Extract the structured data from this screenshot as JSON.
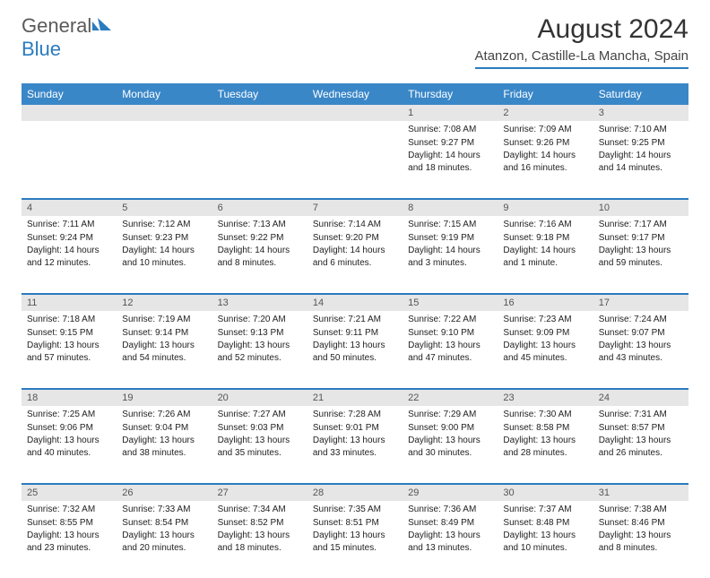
{
  "logo": {
    "text1": "General",
    "text2": "Blue"
  },
  "title": "August 2024",
  "location": "Atanzon, Castille-La Mancha, Spain",
  "colors": {
    "header_bar": "#3a87c8",
    "accent_line": "#2b7bbf",
    "daynum_bg": "#e6e6e6",
    "text": "#333333"
  },
  "daynames": [
    "Sunday",
    "Monday",
    "Tuesday",
    "Wednesday",
    "Thursday",
    "Friday",
    "Saturday"
  ],
  "weeks": [
    [
      {
        "n": "",
        "sr": "",
        "ss": "",
        "dl": ""
      },
      {
        "n": "",
        "sr": "",
        "ss": "",
        "dl": ""
      },
      {
        "n": "",
        "sr": "",
        "ss": "",
        "dl": ""
      },
      {
        "n": "",
        "sr": "",
        "ss": "",
        "dl": ""
      },
      {
        "n": "1",
        "sr": "Sunrise: 7:08 AM",
        "ss": "Sunset: 9:27 PM",
        "dl": "Daylight: 14 hours and 18 minutes."
      },
      {
        "n": "2",
        "sr": "Sunrise: 7:09 AM",
        "ss": "Sunset: 9:26 PM",
        "dl": "Daylight: 14 hours and 16 minutes."
      },
      {
        "n": "3",
        "sr": "Sunrise: 7:10 AM",
        "ss": "Sunset: 9:25 PM",
        "dl": "Daylight: 14 hours and 14 minutes."
      }
    ],
    [
      {
        "n": "4",
        "sr": "Sunrise: 7:11 AM",
        "ss": "Sunset: 9:24 PM",
        "dl": "Daylight: 14 hours and 12 minutes."
      },
      {
        "n": "5",
        "sr": "Sunrise: 7:12 AM",
        "ss": "Sunset: 9:23 PM",
        "dl": "Daylight: 14 hours and 10 minutes."
      },
      {
        "n": "6",
        "sr": "Sunrise: 7:13 AM",
        "ss": "Sunset: 9:22 PM",
        "dl": "Daylight: 14 hours and 8 minutes."
      },
      {
        "n": "7",
        "sr": "Sunrise: 7:14 AM",
        "ss": "Sunset: 9:20 PM",
        "dl": "Daylight: 14 hours and 6 minutes."
      },
      {
        "n": "8",
        "sr": "Sunrise: 7:15 AM",
        "ss": "Sunset: 9:19 PM",
        "dl": "Daylight: 14 hours and 3 minutes."
      },
      {
        "n": "9",
        "sr": "Sunrise: 7:16 AM",
        "ss": "Sunset: 9:18 PM",
        "dl": "Daylight: 14 hours and 1 minute."
      },
      {
        "n": "10",
        "sr": "Sunrise: 7:17 AM",
        "ss": "Sunset: 9:17 PM",
        "dl": "Daylight: 13 hours and 59 minutes."
      }
    ],
    [
      {
        "n": "11",
        "sr": "Sunrise: 7:18 AM",
        "ss": "Sunset: 9:15 PM",
        "dl": "Daylight: 13 hours and 57 minutes."
      },
      {
        "n": "12",
        "sr": "Sunrise: 7:19 AM",
        "ss": "Sunset: 9:14 PM",
        "dl": "Daylight: 13 hours and 54 minutes."
      },
      {
        "n": "13",
        "sr": "Sunrise: 7:20 AM",
        "ss": "Sunset: 9:13 PM",
        "dl": "Daylight: 13 hours and 52 minutes."
      },
      {
        "n": "14",
        "sr": "Sunrise: 7:21 AM",
        "ss": "Sunset: 9:11 PM",
        "dl": "Daylight: 13 hours and 50 minutes."
      },
      {
        "n": "15",
        "sr": "Sunrise: 7:22 AM",
        "ss": "Sunset: 9:10 PM",
        "dl": "Daylight: 13 hours and 47 minutes."
      },
      {
        "n": "16",
        "sr": "Sunrise: 7:23 AM",
        "ss": "Sunset: 9:09 PM",
        "dl": "Daylight: 13 hours and 45 minutes."
      },
      {
        "n": "17",
        "sr": "Sunrise: 7:24 AM",
        "ss": "Sunset: 9:07 PM",
        "dl": "Daylight: 13 hours and 43 minutes."
      }
    ],
    [
      {
        "n": "18",
        "sr": "Sunrise: 7:25 AM",
        "ss": "Sunset: 9:06 PM",
        "dl": "Daylight: 13 hours and 40 minutes."
      },
      {
        "n": "19",
        "sr": "Sunrise: 7:26 AM",
        "ss": "Sunset: 9:04 PM",
        "dl": "Daylight: 13 hours and 38 minutes."
      },
      {
        "n": "20",
        "sr": "Sunrise: 7:27 AM",
        "ss": "Sunset: 9:03 PM",
        "dl": "Daylight: 13 hours and 35 minutes."
      },
      {
        "n": "21",
        "sr": "Sunrise: 7:28 AM",
        "ss": "Sunset: 9:01 PM",
        "dl": "Daylight: 13 hours and 33 minutes."
      },
      {
        "n": "22",
        "sr": "Sunrise: 7:29 AM",
        "ss": "Sunset: 9:00 PM",
        "dl": "Daylight: 13 hours and 30 minutes."
      },
      {
        "n": "23",
        "sr": "Sunrise: 7:30 AM",
        "ss": "Sunset: 8:58 PM",
        "dl": "Daylight: 13 hours and 28 minutes."
      },
      {
        "n": "24",
        "sr": "Sunrise: 7:31 AM",
        "ss": "Sunset: 8:57 PM",
        "dl": "Daylight: 13 hours and 26 minutes."
      }
    ],
    [
      {
        "n": "25",
        "sr": "Sunrise: 7:32 AM",
        "ss": "Sunset: 8:55 PM",
        "dl": "Daylight: 13 hours and 23 minutes."
      },
      {
        "n": "26",
        "sr": "Sunrise: 7:33 AM",
        "ss": "Sunset: 8:54 PM",
        "dl": "Daylight: 13 hours and 20 minutes."
      },
      {
        "n": "27",
        "sr": "Sunrise: 7:34 AM",
        "ss": "Sunset: 8:52 PM",
        "dl": "Daylight: 13 hours and 18 minutes."
      },
      {
        "n": "28",
        "sr": "Sunrise: 7:35 AM",
        "ss": "Sunset: 8:51 PM",
        "dl": "Daylight: 13 hours and 15 minutes."
      },
      {
        "n": "29",
        "sr": "Sunrise: 7:36 AM",
        "ss": "Sunset: 8:49 PM",
        "dl": "Daylight: 13 hours and 13 minutes."
      },
      {
        "n": "30",
        "sr": "Sunrise: 7:37 AM",
        "ss": "Sunset: 8:48 PM",
        "dl": "Daylight: 13 hours and 10 minutes."
      },
      {
        "n": "31",
        "sr": "Sunrise: 7:38 AM",
        "ss": "Sunset: 8:46 PM",
        "dl": "Daylight: 13 hours and 8 minutes."
      }
    ]
  ]
}
